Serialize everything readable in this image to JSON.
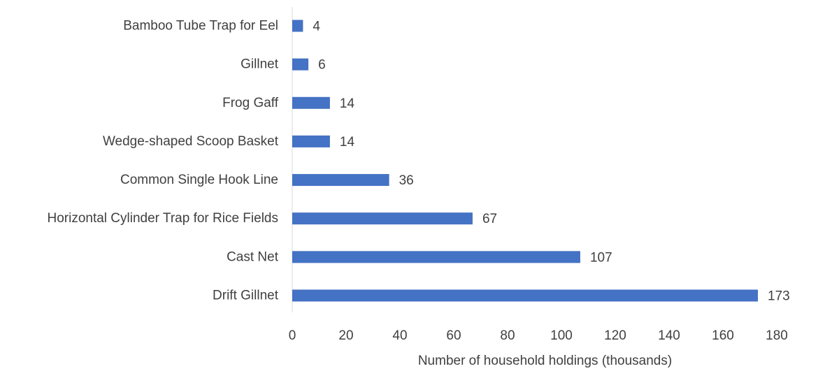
{
  "chart_data": {
    "type": "bar",
    "orientation": "horizontal",
    "categories": [
      "Drift Gillnet",
      "Cast Net",
      "Horizontal Cylinder Trap for Rice Fields",
      "Common Single Hook Line",
      "Wedge-shaped Scoop Basket",
      "Frog Gaff",
      "Gillnet",
      "Bamboo Tube Trap for Eel"
    ],
    "values": [
      173,
      107,
      67,
      36,
      14,
      14,
      6,
      4
    ],
    "title": "",
    "xlabel": "Number of household holdings (thousands)",
    "ylabel": "",
    "xlim": [
      0,
      180
    ],
    "xticks": [
      0,
      20,
      40,
      60,
      80,
      100,
      120,
      140,
      160,
      180
    ],
    "grid": false,
    "legend": "none",
    "bar_color": "#4472C4",
    "data_labels": true
  }
}
